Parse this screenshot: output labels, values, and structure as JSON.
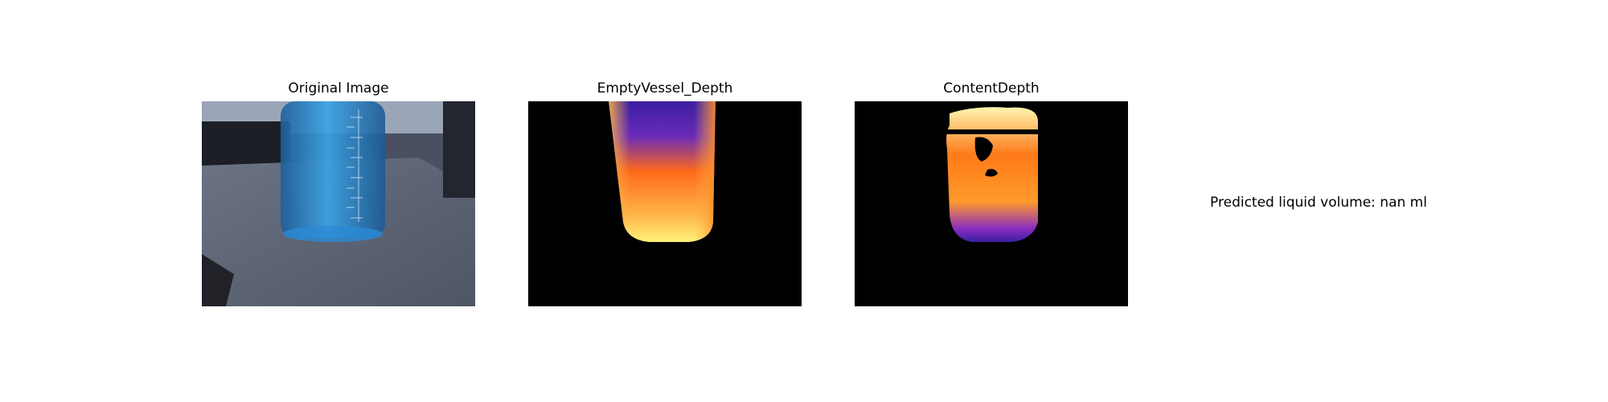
{
  "panels": [
    {
      "title": "Original Image",
      "image": "blue-liquid-in-measuring-beaker-on-desk"
    },
    {
      "title": "EmptyVessel_Depth",
      "image": "depth-map-of-empty-vessel"
    },
    {
      "title": "ContentDepth",
      "image": "depth-map-of-vessel-content"
    }
  ],
  "result": {
    "text": "Predicted liquid volume: nan ml"
  },
  "colors": {
    "background": "#ffffff",
    "depth_background": "#000000",
    "liquid_blue": "#2d8fd6",
    "desk_gray": "#5d6676",
    "depth_low": "#3a1fa0",
    "depth_mid": "#ff6a1a",
    "depth_high": "#fff27a"
  }
}
